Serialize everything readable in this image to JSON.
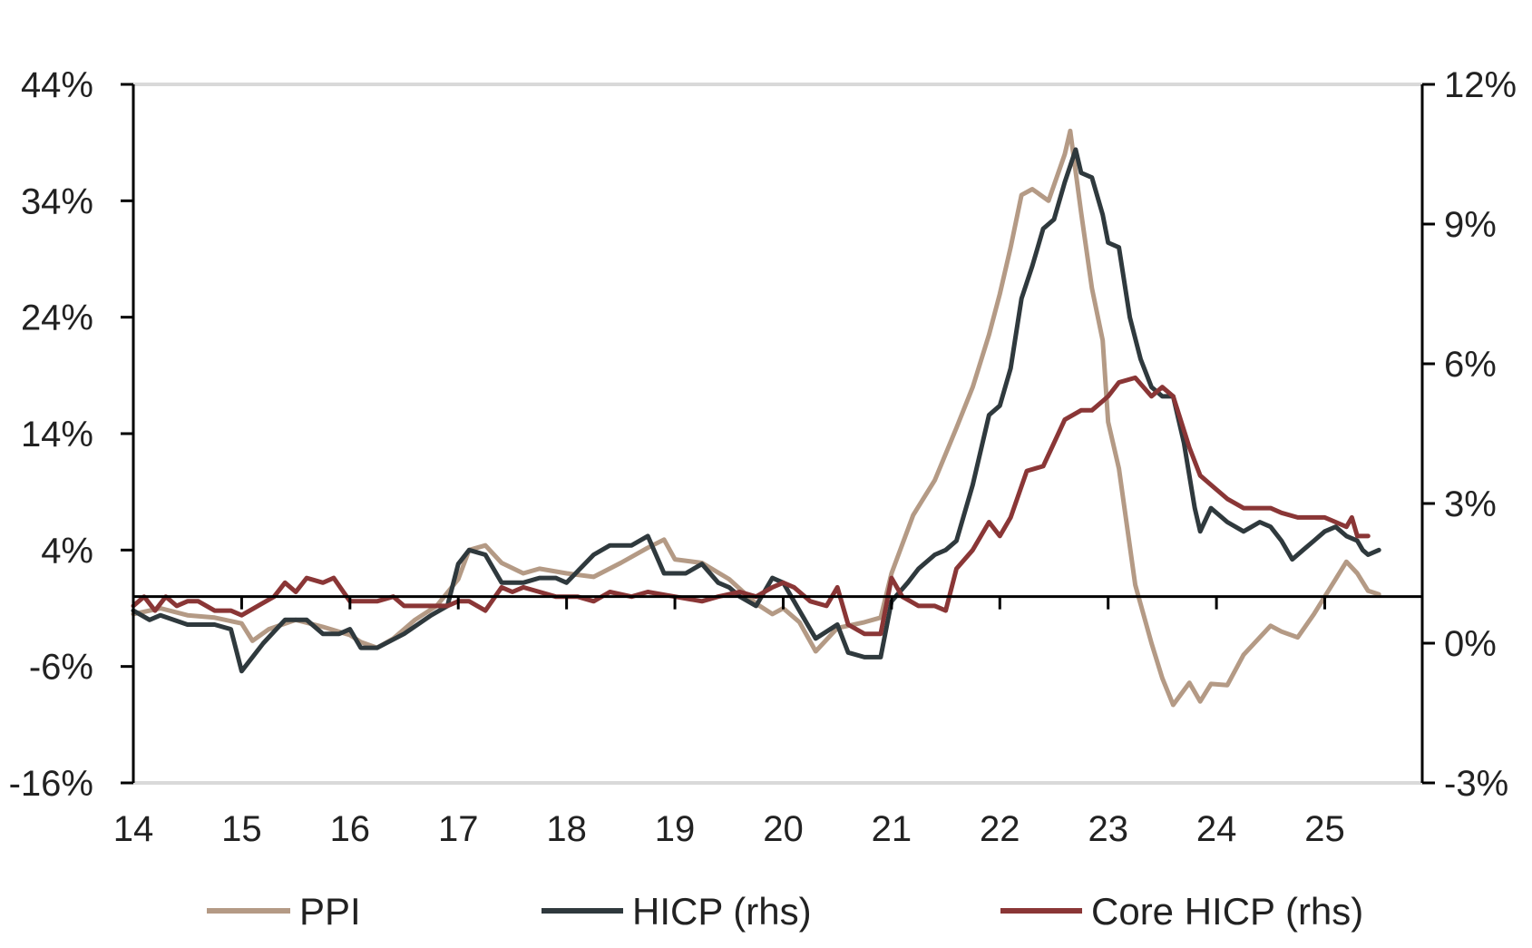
{
  "chart_data": {
    "type": "line",
    "title": "",
    "xlabel": "",
    "ylabel": "",
    "x_ticks": [
      "14",
      "15",
      "16",
      "17",
      "18",
      "19",
      "20",
      "21",
      "22",
      "23",
      "24",
      "25"
    ],
    "y_left_ticks": [
      "44%",
      "34%",
      "24%",
      "14%",
      "4%",
      "-6%",
      "-16%"
    ],
    "y_right_ticks": [
      "12%",
      "9%",
      "6%",
      "3%",
      "0%",
      "-3%"
    ],
    "y_left_range": [
      -16,
      44
    ],
    "y_right_range": [
      -3,
      12
    ],
    "x_range": [
      2014.0,
      2025.9
    ],
    "grid": "top border only",
    "zero_line": "black horizontal line at 0 (both axes)",
    "legend_position": "bottom",
    "series": [
      {
        "name": "PPI",
        "axis": "left",
        "color": "#b49a85",
        "points": [
          [
            2014.0,
            -1.5
          ],
          [
            2014.25,
            -1.0
          ],
          [
            2014.5,
            -1.6
          ],
          [
            2014.75,
            -1.8
          ],
          [
            2015.0,
            -2.3
          ],
          [
            2015.1,
            -3.8
          ],
          [
            2015.25,
            -2.8
          ],
          [
            2015.5,
            -2.0
          ],
          [
            2015.75,
            -2.6
          ],
          [
            2016.0,
            -3.3
          ],
          [
            2016.1,
            -3.9
          ],
          [
            2016.25,
            -4.4
          ],
          [
            2016.4,
            -3.6
          ],
          [
            2016.6,
            -2.0
          ],
          [
            2016.8,
            -0.8
          ],
          [
            2017.0,
            1.5
          ],
          [
            2017.1,
            4.0
          ],
          [
            2017.25,
            4.4
          ],
          [
            2017.4,
            2.9
          ],
          [
            2017.6,
            2.0
          ],
          [
            2017.75,
            2.4
          ],
          [
            2018.0,
            2.0
          ],
          [
            2018.25,
            1.7
          ],
          [
            2018.5,
            2.9
          ],
          [
            2018.75,
            4.2
          ],
          [
            2018.9,
            4.9
          ],
          [
            2019.0,
            3.2
          ],
          [
            2019.25,
            2.9
          ],
          [
            2019.5,
            1.5
          ],
          [
            2019.75,
            -0.6
          ],
          [
            2019.9,
            -1.5
          ],
          [
            2020.0,
            -1.0
          ],
          [
            2020.15,
            -2.2
          ],
          [
            2020.3,
            -4.7
          ],
          [
            2020.5,
            -2.7
          ],
          [
            2020.75,
            -2.2
          ],
          [
            2020.9,
            -1.8
          ],
          [
            2021.0,
            2.0
          ],
          [
            2021.2,
            7.0
          ],
          [
            2021.4,
            10.0
          ],
          [
            2021.6,
            14.5
          ],
          [
            2021.75,
            18.0
          ],
          [
            2021.9,
            22.5
          ],
          [
            2022.0,
            26.0
          ],
          [
            2022.1,
            30.0
          ],
          [
            2022.2,
            34.5
          ],
          [
            2022.3,
            35.0
          ],
          [
            2022.45,
            34.0
          ],
          [
            2022.6,
            38.0
          ],
          [
            2022.65,
            40.0
          ],
          [
            2022.75,
            33.0
          ],
          [
            2022.85,
            26.5
          ],
          [
            2022.95,
            22.0
          ],
          [
            2023.0,
            15.0
          ],
          [
            2023.1,
            11.0
          ],
          [
            2023.25,
            1.0
          ],
          [
            2023.4,
            -4.0
          ],
          [
            2023.5,
            -7.0
          ],
          [
            2023.6,
            -9.3
          ],
          [
            2023.75,
            -7.4
          ],
          [
            2023.85,
            -9.0
          ],
          [
            2023.95,
            -7.5
          ],
          [
            2024.1,
            -7.6
          ],
          [
            2024.25,
            -5.0
          ],
          [
            2024.4,
            -3.5
          ],
          [
            2024.5,
            -2.5
          ],
          [
            2024.6,
            -3.0
          ],
          [
            2024.75,
            -3.5
          ],
          [
            2024.9,
            -1.5
          ],
          [
            2025.0,
            0.0
          ],
          [
            2025.1,
            1.5
          ],
          [
            2025.2,
            3.0
          ],
          [
            2025.3,
            2.0
          ],
          [
            2025.4,
            0.5
          ],
          [
            2025.5,
            0.2
          ]
        ]
      },
      {
        "name": "HICP (rhs)",
        "axis": "right",
        "color": "#2f393d",
        "points": [
          [
            2014.0,
            0.7
          ],
          [
            2014.15,
            0.5
          ],
          [
            2014.25,
            0.6
          ],
          [
            2014.5,
            0.4
          ],
          [
            2014.75,
            0.4
          ],
          [
            2014.9,
            0.3
          ],
          [
            2015.0,
            -0.6
          ],
          [
            2015.2,
            0.0
          ],
          [
            2015.4,
            0.5
          ],
          [
            2015.6,
            0.5
          ],
          [
            2015.75,
            0.2
          ],
          [
            2015.9,
            0.2
          ],
          [
            2016.0,
            0.3
          ],
          [
            2016.1,
            -0.1
          ],
          [
            2016.25,
            -0.1
          ],
          [
            2016.5,
            0.2
          ],
          [
            2016.75,
            0.6
          ],
          [
            2016.9,
            0.8
          ],
          [
            2017.0,
            1.7
          ],
          [
            2017.1,
            2.0
          ],
          [
            2017.25,
            1.9
          ],
          [
            2017.4,
            1.3
          ],
          [
            2017.6,
            1.3
          ],
          [
            2017.75,
            1.4
          ],
          [
            2017.9,
            1.4
          ],
          [
            2018.0,
            1.3
          ],
          [
            2018.25,
            1.9
          ],
          [
            2018.4,
            2.1
          ],
          [
            2018.6,
            2.1
          ],
          [
            2018.75,
            2.3
          ],
          [
            2018.9,
            1.5
          ],
          [
            2019.1,
            1.5
          ],
          [
            2019.25,
            1.7
          ],
          [
            2019.4,
            1.3
          ],
          [
            2019.5,
            1.2
          ],
          [
            2019.6,
            1.0
          ],
          [
            2019.75,
            0.8
          ],
          [
            2019.9,
            1.4
          ],
          [
            2020.0,
            1.3
          ],
          [
            2020.15,
            0.7
          ],
          [
            2020.3,
            0.1
          ],
          [
            2020.5,
            0.4
          ],
          [
            2020.6,
            -0.2
          ],
          [
            2020.75,
            -0.3
          ],
          [
            2020.9,
            -0.3
          ],
          [
            2021.0,
            0.9
          ],
          [
            2021.15,
            1.3
          ],
          [
            2021.25,
            1.6
          ],
          [
            2021.4,
            1.9
          ],
          [
            2021.5,
            2.0
          ],
          [
            2021.6,
            2.2
          ],
          [
            2021.75,
            3.4
          ],
          [
            2021.9,
            4.9
          ],
          [
            2022.0,
            5.1
          ],
          [
            2022.1,
            5.9
          ],
          [
            2022.2,
            7.4
          ],
          [
            2022.3,
            8.1
          ],
          [
            2022.4,
            8.9
          ],
          [
            2022.5,
            9.1
          ],
          [
            2022.6,
            9.9
          ],
          [
            2022.7,
            10.6
          ],
          [
            2022.75,
            10.1
          ],
          [
            2022.85,
            10.0
          ],
          [
            2022.95,
            9.2
          ],
          [
            2023.0,
            8.6
          ],
          [
            2023.1,
            8.5
          ],
          [
            2023.2,
            7.0
          ],
          [
            2023.3,
            6.1
          ],
          [
            2023.4,
            5.5
          ],
          [
            2023.5,
            5.3
          ],
          [
            2023.6,
            5.3
          ],
          [
            2023.7,
            4.3
          ],
          [
            2023.8,
            2.9
          ],
          [
            2023.85,
            2.4
          ],
          [
            2023.95,
            2.9
          ],
          [
            2024.1,
            2.6
          ],
          [
            2024.25,
            2.4
          ],
          [
            2024.4,
            2.6
          ],
          [
            2024.5,
            2.5
          ],
          [
            2024.6,
            2.2
          ],
          [
            2024.7,
            1.8
          ],
          [
            2024.8,
            2.0
          ],
          [
            2024.9,
            2.2
          ],
          [
            2025.0,
            2.4
          ],
          [
            2025.1,
            2.5
          ],
          [
            2025.2,
            2.3
          ],
          [
            2025.3,
            2.2
          ],
          [
            2025.35,
            2.0
          ],
          [
            2025.4,
            1.9
          ],
          [
            2025.5,
            2.0
          ]
        ]
      },
      {
        "name": "Core HICP (rhs)",
        "axis": "right",
        "color": "#8a3636",
        "points": [
          [
            2014.0,
            0.8
          ],
          [
            2014.1,
            1.0
          ],
          [
            2014.2,
            0.7
          ],
          [
            2014.3,
            1.0
          ],
          [
            2014.4,
            0.8
          ],
          [
            2014.5,
            0.9
          ],
          [
            2014.6,
            0.9
          ],
          [
            2014.75,
            0.7
          ],
          [
            2014.9,
            0.7
          ],
          [
            2015.0,
            0.6
          ],
          [
            2015.15,
            0.8
          ],
          [
            2015.3,
            1.0
          ],
          [
            2015.4,
            1.3
          ],
          [
            2015.5,
            1.1
          ],
          [
            2015.6,
            1.4
          ],
          [
            2015.75,
            1.3
          ],
          [
            2015.85,
            1.4
          ],
          [
            2016.0,
            0.9
          ],
          [
            2016.1,
            0.9
          ],
          [
            2016.25,
            0.9
          ],
          [
            2016.4,
            1.0
          ],
          [
            2016.5,
            0.8
          ],
          [
            2016.75,
            0.8
          ],
          [
            2016.9,
            0.8
          ],
          [
            2017.0,
            0.9
          ],
          [
            2017.1,
            0.9
          ],
          [
            2017.25,
            0.7
          ],
          [
            2017.4,
            1.2
          ],
          [
            2017.5,
            1.1
          ],
          [
            2017.6,
            1.2
          ],
          [
            2017.75,
            1.1
          ],
          [
            2017.9,
            1.0
          ],
          [
            2018.0,
            1.0
          ],
          [
            2018.1,
            1.0
          ],
          [
            2018.25,
            0.9
          ],
          [
            2018.4,
            1.1
          ],
          [
            2018.6,
            1.0
          ],
          [
            2018.75,
            1.1
          ],
          [
            2019.0,
            1.0
          ],
          [
            2019.25,
            0.9
          ],
          [
            2019.4,
            1.0
          ],
          [
            2019.6,
            1.1
          ],
          [
            2019.75,
            1.0
          ],
          [
            2019.9,
            1.2
          ],
          [
            2020.0,
            1.3
          ],
          [
            2020.1,
            1.2
          ],
          [
            2020.25,
            0.9
          ],
          [
            2020.4,
            0.8
          ],
          [
            2020.5,
            1.2
          ],
          [
            2020.6,
            0.4
          ],
          [
            2020.75,
            0.2
          ],
          [
            2020.9,
            0.2
          ],
          [
            2021.0,
            1.4
          ],
          [
            2021.1,
            1.0
          ],
          [
            2021.25,
            0.8
          ],
          [
            2021.4,
            0.8
          ],
          [
            2021.5,
            0.7
          ],
          [
            2021.6,
            1.6
          ],
          [
            2021.75,
            2.0
          ],
          [
            2021.9,
            2.6
          ],
          [
            2022.0,
            2.3
          ],
          [
            2022.1,
            2.7
          ],
          [
            2022.25,
            3.7
          ],
          [
            2022.4,
            3.8
          ],
          [
            2022.5,
            4.3
          ],
          [
            2022.6,
            4.8
          ],
          [
            2022.75,
            5.0
          ],
          [
            2022.85,
            5.0
          ],
          [
            2022.95,
            5.2
          ],
          [
            2023.0,
            5.3
          ],
          [
            2023.1,
            5.6
          ],
          [
            2023.25,
            5.7
          ],
          [
            2023.4,
            5.3
          ],
          [
            2023.5,
            5.5
          ],
          [
            2023.6,
            5.3
          ],
          [
            2023.75,
            4.2
          ],
          [
            2023.85,
            3.6
          ],
          [
            2023.95,
            3.4
          ],
          [
            2024.1,
            3.1
          ],
          [
            2024.25,
            2.9
          ],
          [
            2024.4,
            2.9
          ],
          [
            2024.5,
            2.9
          ],
          [
            2024.6,
            2.8
          ],
          [
            2024.75,
            2.7
          ],
          [
            2024.9,
            2.7
          ],
          [
            2025.0,
            2.7
          ],
          [
            2025.1,
            2.6
          ],
          [
            2025.2,
            2.5
          ],
          [
            2025.25,
            2.7
          ],
          [
            2025.3,
            2.3
          ],
          [
            2025.4,
            2.3
          ]
        ]
      }
    ]
  }
}
